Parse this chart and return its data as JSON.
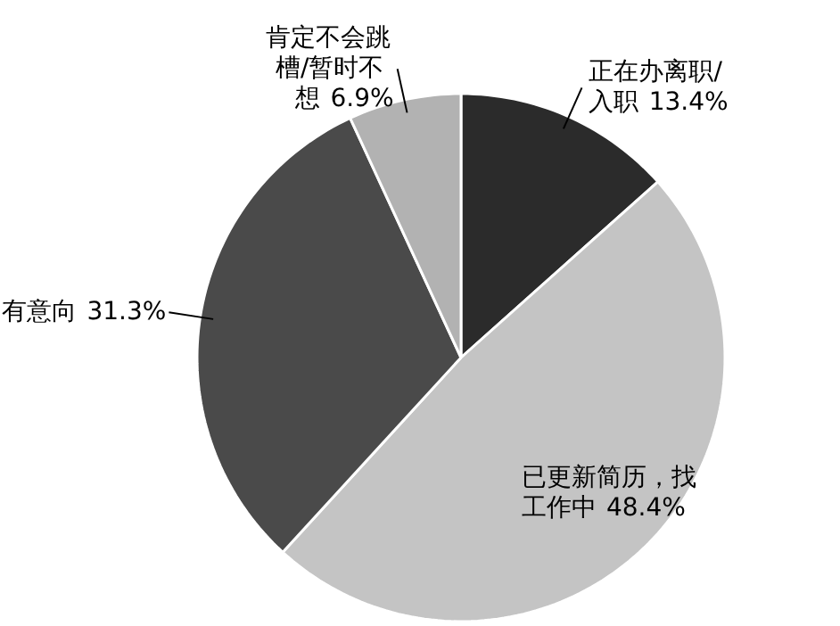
{
  "chart_data": {
    "type": "pie",
    "categories": [
      "正在办离职/入职",
      "已更新简历，找工作中",
      "有意向",
      "肯定不会跳槽/暂时不想"
    ],
    "values": [
      13.4,
      48.4,
      31.3,
      6.9
    ],
    "colors": [
      "#2b2b2b",
      "#c4c4c4",
      "#4a4a4a",
      "#b2b2b2"
    ],
    "value_labels": [
      "13.4%",
      "48.4%",
      "31.3%",
      "6.9%"
    ]
  }
}
